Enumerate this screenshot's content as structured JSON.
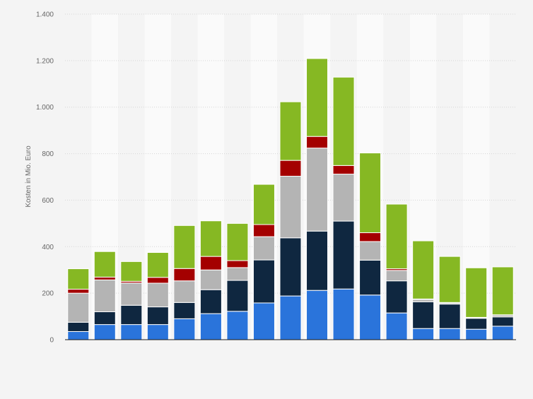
{
  "chart_data": {
    "type": "bar",
    "stacked": true,
    "ylabel": "Kosten in Mio. Euro",
    "xlabel": "",
    "ylim": [
      0,
      1400
    ],
    "yticks": [
      0,
      200,
      400,
      600,
      800,
      1000,
      1200,
      1400
    ],
    "ytick_labels": [
      "0",
      "200",
      "400",
      "600",
      "800",
      "1.000",
      "1.200",
      "1.400"
    ],
    "grid": true,
    "legend": "none",
    "bar_count": 17,
    "series": [
      {
        "values": [
          35,
          65,
          65,
          65,
          90,
          112,
          122,
          158,
          188,
          212,
          218,
          192,
          115,
          48,
          48,
          45,
          58
        ],
        "color": "#2a74db"
      },
      {
        "values": [
          40,
          55,
          83,
          76,
          70,
          103,
          133,
          185,
          250,
          255,
          292,
          150,
          138,
          115,
          105,
          47,
          40
        ],
        "color": "#0f2740"
      },
      {
        "values": [
          125,
          137,
          96,
          102,
          93,
          85,
          55,
          100,
          265,
          357,
          202,
          80,
          45,
          10,
          5,
          3,
          8
        ],
        "color": "#b4b4b4"
      },
      {
        "values": [
          17,
          12,
          7,
          25,
          53,
          58,
          30,
          52,
          68,
          50,
          37,
          38,
          7,
          2,
          2,
          1,
          1
        ],
        "color": "#a40000"
      },
      {
        "values": [
          88,
          110,
          85,
          107,
          185,
          153,
          160,
          173,
          252,
          335,
          380,
          343,
          278,
          250,
          198,
          213,
          206
        ],
        "color": "#86b823"
      }
    ]
  }
}
